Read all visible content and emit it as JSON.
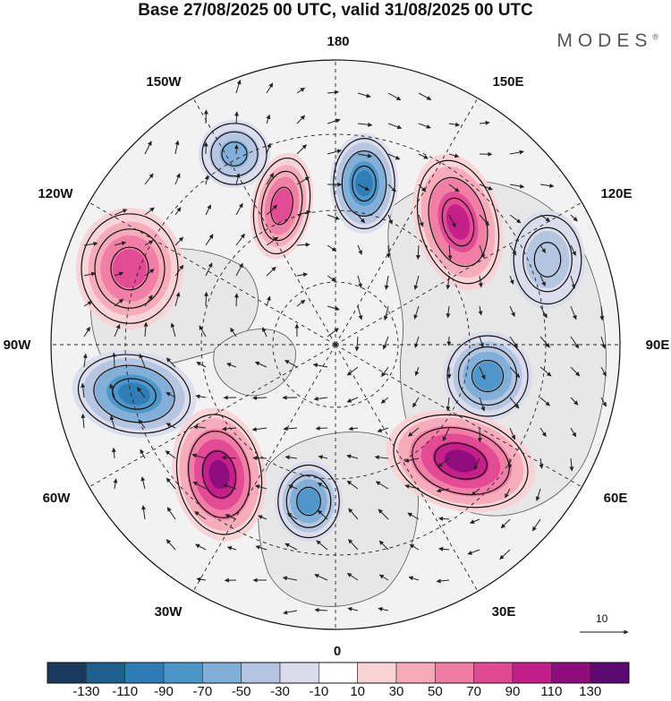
{
  "title": "Base 27/08/2025 00 UTC, valid 31/08/2025 00 UTC",
  "brand": "MODES",
  "brand_mark": "®",
  "map": {
    "projection": "north-polar-stereographic",
    "longitude_labels": {
      "top": "180",
      "top_right": "150E",
      "upper_right": "120E",
      "right": "90E",
      "lower_right": "60E",
      "bottom_right": "30E",
      "bottom": "0",
      "bottom_left": "30W",
      "lower_left": "60W",
      "left": "90W",
      "upper_left": "120W",
      "top_left": "150W"
    },
    "anomaly_centers": [
      {
        "name": "positive-center-west-europe",
        "sign": "positive",
        "magnitude": 110
      },
      {
        "name": "negative-center-north-atlantic",
        "sign": "negative",
        "magnitude": 90
      },
      {
        "name": "positive-center-north-america",
        "sign": "positive",
        "magnitude": 70
      },
      {
        "name": "positive-center-north-pacific-east",
        "sign": "positive",
        "magnitude": 70
      },
      {
        "name": "negative-center-bering",
        "sign": "negative",
        "magnitude": 90
      },
      {
        "name": "positive-center-kamchatka",
        "sign": "positive",
        "magnitude": 90
      },
      {
        "name": "negative-center-west-siberia",
        "sign": "negative",
        "magnitude": 70
      },
      {
        "name": "positive-center-russia",
        "sign": "positive",
        "magnitude": 110
      },
      {
        "name": "negative-center-scandinavia",
        "sign": "negative",
        "magnitude": 70
      },
      {
        "name": "negative-center-east-pacific",
        "sign": "negative",
        "magnitude": 50
      },
      {
        "name": "negative-center-east-siberia",
        "sign": "negative",
        "magnitude": 30
      }
    ],
    "reference_vector": {
      "label": "10"
    }
  },
  "colorbar": {
    "tick_labels": [
      "-130",
      "-110",
      "-90",
      "-70",
      "-50",
      "-30",
      "-10",
      "10",
      "30",
      "50",
      "70",
      "90",
      "110",
      "130"
    ],
    "colors": [
      "#1a3a5c",
      "#1e5f8e",
      "#2f7bb4",
      "#4d96c8",
      "#7faed6",
      "#b3c4e0",
      "#dadcec",
      "#ffffff",
      "#f9d2d6",
      "#f5aab8",
      "#f07ba3",
      "#e14994",
      "#c31e89",
      "#8e0c7c",
      "#5a0a6e"
    ]
  }
}
